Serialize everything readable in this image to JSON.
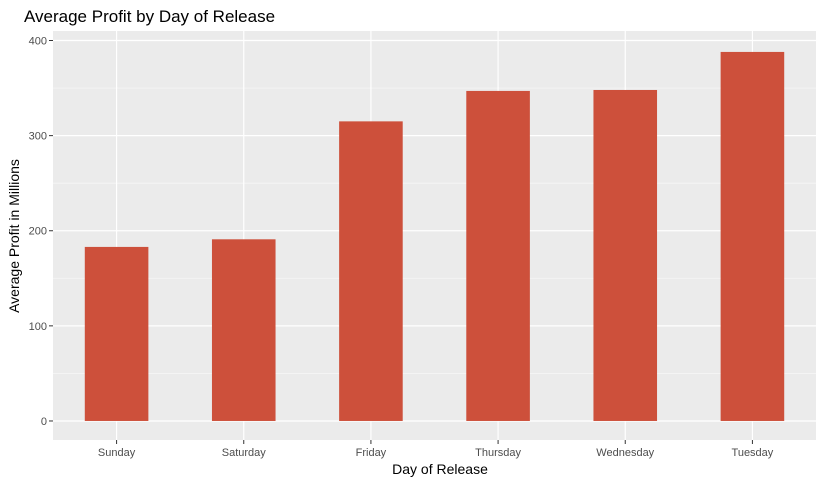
{
  "chart_data": {
    "type": "bar",
    "title": "Average Profit by Day of Release",
    "xlabel": "Day of Release",
    "ylabel": "Average Profit in Millions",
    "categories": [
      "Sunday",
      "Saturday",
      "Friday",
      "Thursday",
      "Wednesday",
      "Tuesday"
    ],
    "values": [
      183,
      191,
      315,
      347,
      348,
      388
    ],
    "ylim": [
      -20,
      410
    ],
    "yticks": [
      0,
      100,
      200,
      300,
      400
    ],
    "grid": true,
    "legend": "none",
    "colors": {
      "bar": "#CD503B",
      "panel": "#EBEBEB",
      "grid_major": "#FFFFFF",
      "grid_minor": "#F5F5F5",
      "tick_text": "#4D4D4D"
    }
  }
}
